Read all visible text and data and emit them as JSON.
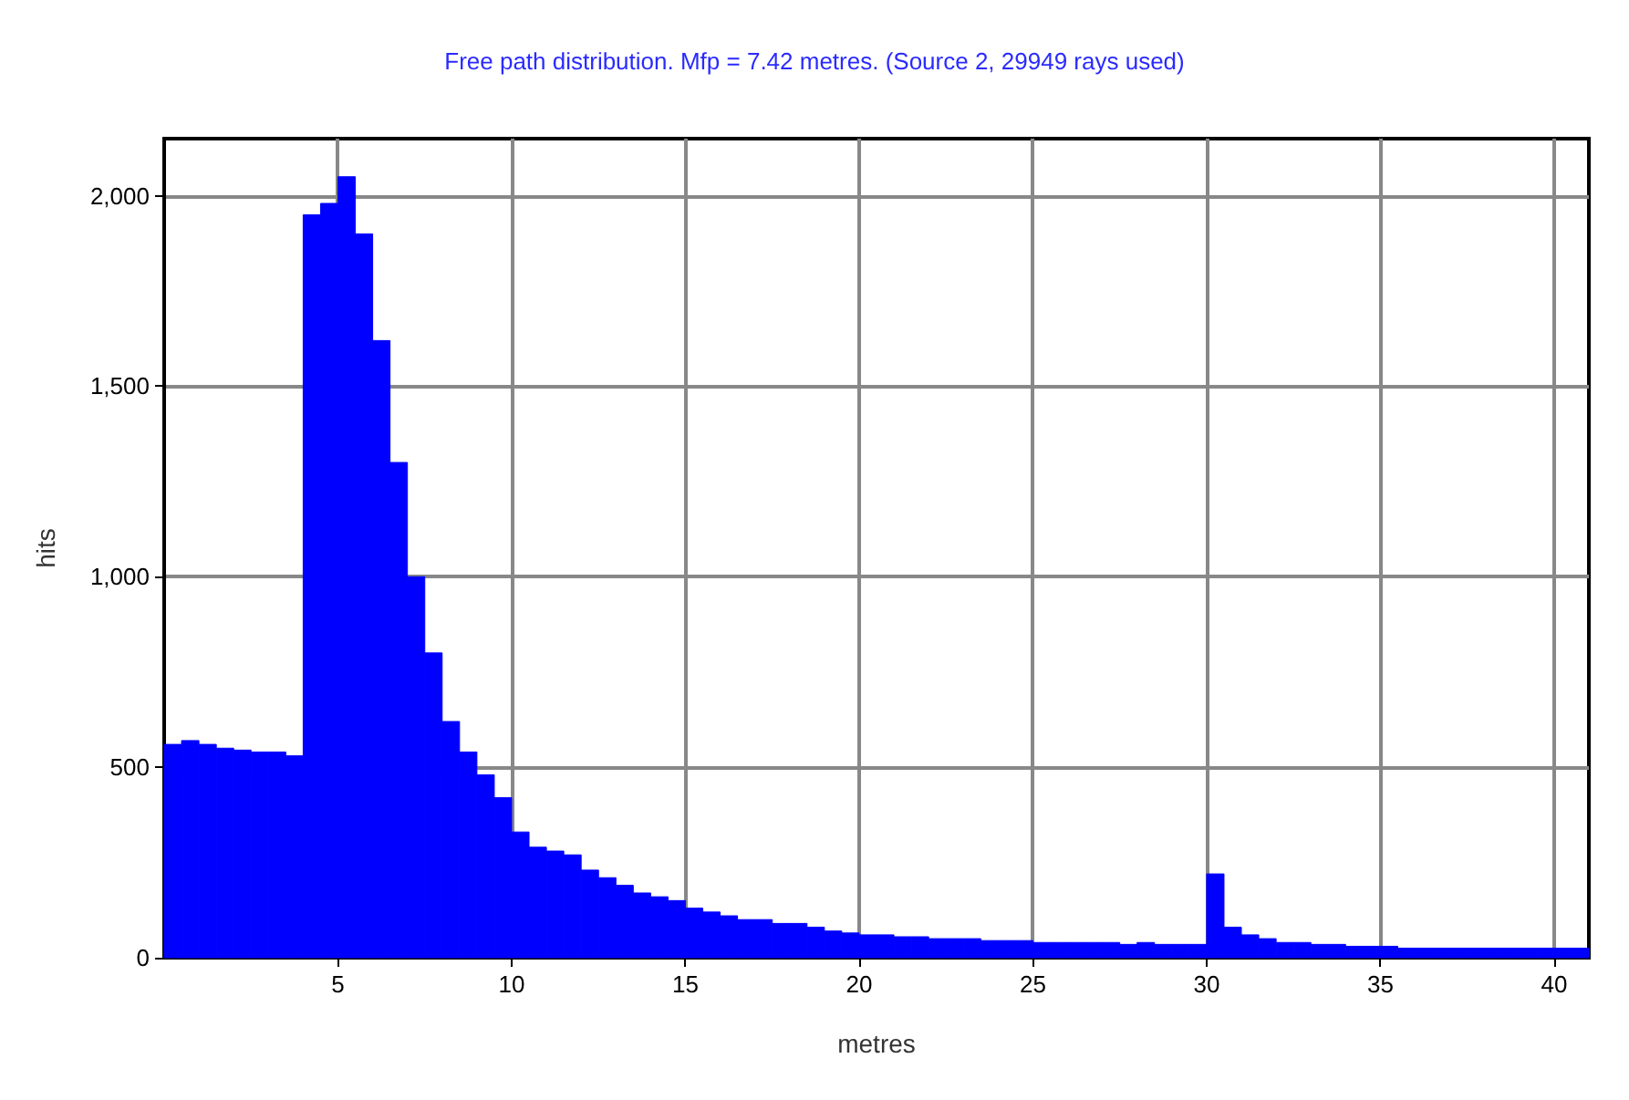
{
  "chart_data": {
    "type": "histogram",
    "title": "Free path distribution. Mfp = 7.42 metres. (Source 2, 29949 rays used)",
    "xlabel": "metres",
    "ylabel": "hits",
    "color": "#0000ff",
    "bins": [
      0,
      0.5,
      1,
      1.5,
      2,
      2.5,
      3,
      3.5,
      4,
      4.5,
      5,
      5.5,
      6,
      6.5,
      7,
      7.5,
      8,
      8.5,
      9,
      9.5,
      10,
      10.5,
      11,
      11.5,
      12,
      12.5,
      13,
      13.5,
      14,
      14.5,
      15,
      15.5,
      16,
      16.5,
      17,
      17.5,
      18,
      18.5,
      19,
      19.5,
      20,
      20.5,
      21,
      21.5,
      22,
      22.5,
      23,
      23.5,
      24,
      24.5,
      25,
      25.5,
      26,
      26.5,
      27,
      27.5,
      28,
      28.5,
      29,
      29.5,
      30,
      30.5,
      31,
      31.5,
      32,
      32.5,
      33,
      33.5,
      34,
      34.5,
      35,
      35.5,
      36,
      36.5,
      37,
      37.5,
      38,
      38.5,
      39,
      39.5,
      40,
      40.5,
      41
    ],
    "values": [
      560,
      570,
      560,
      550,
      545,
      540,
      540,
      530,
      1950,
      1980,
      2050,
      1900,
      1620,
      1300,
      1000,
      800,
      620,
      540,
      480,
      420,
      330,
      290,
      280,
      270,
      230,
      210,
      190,
      170,
      160,
      150,
      130,
      120,
      110,
      100,
      100,
      90,
      90,
      80,
      70,
      65,
      60,
      60,
      55,
      55,
      50,
      50,
      50,
      45,
      45,
      45,
      40,
      40,
      40,
      40,
      40,
      35,
      40,
      35,
      35,
      35,
      220,
      80,
      60,
      50,
      40,
      40,
      35,
      35,
      30,
      30,
      30,
      25,
      25,
      25,
      25,
      25,
      25,
      25,
      25,
      25,
      25,
      25
    ],
    "xlim": [
      0,
      41
    ],
    "xticks": [
      5,
      10,
      15,
      20,
      25,
      30,
      35,
      40
    ],
    "ylim": [
      0,
      2150
    ],
    "yticks": [
      {
        "value": 0,
        "label": "0"
      },
      {
        "value": 500,
        "label": "500"
      },
      {
        "value": 1000,
        "label": "1,000"
      },
      {
        "value": 1500,
        "label": "1,500"
      },
      {
        "value": 2000,
        "label": "2,000"
      }
    ],
    "grid": true
  }
}
